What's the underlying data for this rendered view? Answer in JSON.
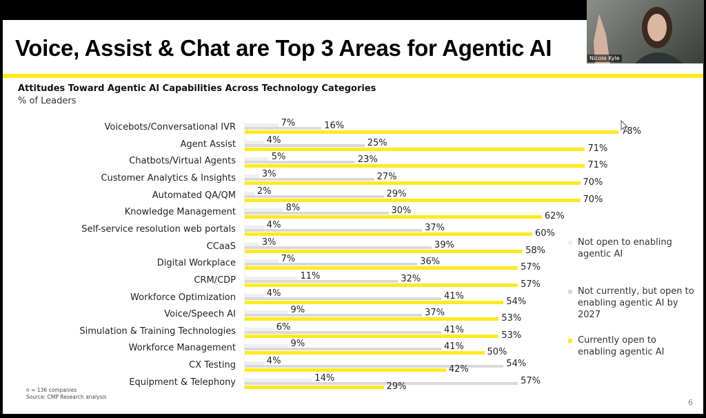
{
  "slide": {
    "title": "Voice, Assist & Chat are Top 3 Areas for Agentic AI",
    "subtitle": "Attitudes Toward Agentic AI Capabilities Across Technology Categories",
    "unit": "% of Leaders",
    "footnote_n": "n = 136 companies",
    "footnote_source": "Source: CMP Research analysis",
    "page": "6"
  },
  "video": {
    "participant": "Nicole Kyle"
  },
  "chart_data": {
    "type": "bar",
    "orientation": "horizontal",
    "title": "Attitudes Toward Agentic AI Capabilities Across Technology Categories",
    "ylabel": "% of Leaders",
    "xlim": [
      0,
      100
    ],
    "categories": [
      "Voicebots/Conversational IVR",
      "Agent Assist",
      "Chatbots/Virtual Agents",
      "Customer Analytics & Insights",
      "Automated QA/QM",
      "Knowledge Management",
      "Self-service resolution web portals",
      "CCaaS",
      "Digital Workplace",
      "CRM/CDP",
      "Workforce Optimization",
      "Voice/Speech AI",
      "Simulation & Training Technologies",
      "Workforce Management",
      "CX Testing",
      "Equipment & Telephony"
    ],
    "series": [
      {
        "name": "Not open to enabling agentic AI",
        "color": "#efefef",
        "values": [
          7,
          4,
          5,
          3,
          2,
          8,
          4,
          3,
          7,
          11,
          4,
          9,
          6,
          9,
          4,
          14
        ]
      },
      {
        "name": "Not currently, but open to enabling agentic AI by 2027",
        "color": "#d9d9d9",
        "values": [
          16,
          25,
          23,
          27,
          29,
          30,
          37,
          39,
          36,
          32,
          41,
          37,
          41,
          41,
          54,
          57
        ]
      },
      {
        "name": "Currently open to enabling agentic AI",
        "color": "#ffe920",
        "values": [
          78,
          71,
          71,
          70,
          70,
          62,
          60,
          58,
          57,
          57,
          54,
          53,
          53,
          50,
          42,
          29
        ]
      }
    ],
    "legend": [
      "Not open to enabling agentic AI",
      "Not currently, but open to enabling agentic AI by 2027",
      "Currently open to enabling agentic AI"
    ],
    "legend_placement": "right"
  }
}
